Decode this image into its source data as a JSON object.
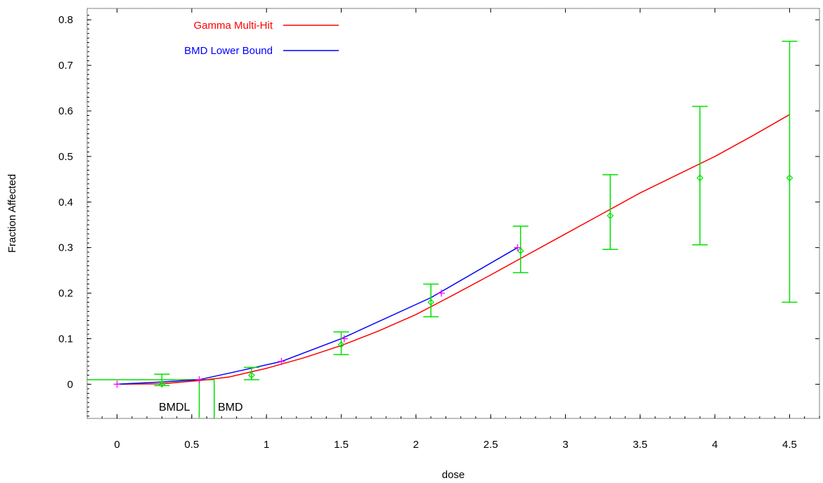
{
  "chart_data": {
    "type": "line",
    "xlabel": "dose",
    "ylabel": "Fraction Affected",
    "xlim": [
      -0.2,
      4.7
    ],
    "ylim": [
      -0.075,
      0.825
    ],
    "xticks": [
      0,
      0.5,
      1,
      1.5,
      2,
      2.5,
      3,
      3.5,
      4,
      4.5
    ],
    "xtick_labels": [
      "0",
      "0.5",
      "1",
      "1.5",
      "2",
      "2.5",
      "3",
      "3.5",
      "4",
      "4.5"
    ],
    "yticks": [
      0,
      0.1,
      0.2,
      0.3,
      0.4,
      0.5,
      0.6,
      0.7,
      0.8
    ],
    "ytick_labels": [
      "0",
      "0.1",
      "0.2",
      "0.3",
      "0.4",
      "0.5",
      "0.6",
      "0.7",
      "0.8"
    ],
    "grid": false,
    "legend_position": "top-left",
    "series": [
      {
        "name": "Gamma Multi-Hit",
        "color": "#ff0000",
        "x": [
          0,
          0.3,
          0.55,
          0.75,
          1.0,
          1.25,
          1.5,
          1.75,
          2.0,
          2.25,
          2.5,
          2.75,
          3.0,
          3.25,
          3.5,
          3.75,
          4.0,
          4.25,
          4.5
        ],
        "y": [
          0,
          0.001,
          0.008,
          0.016,
          0.035,
          0.058,
          0.085,
          0.117,
          0.153,
          0.196,
          0.24,
          0.285,
          0.33,
          0.375,
          0.42,
          0.46,
          0.5,
          0.545,
          0.592
        ]
      },
      {
        "name": "BMD Lower Bound",
        "color": "#0000ff",
        "x": [
          0,
          0.3,
          0.55,
          0.8,
          1.1,
          1.5,
          2.1,
          2.68
        ],
        "y": [
          0,
          0.005,
          0.01,
          0.028,
          0.05,
          0.1,
          0.19,
          0.3
        ]
      }
    ],
    "observations": {
      "color": "#00e000",
      "points": [
        {
          "x": 0.3,
          "y": 0.0,
          "lower": -0.003,
          "upper": 0.022
        },
        {
          "x": 0.9,
          "y": 0.02,
          "lower": 0.01,
          "upper": 0.037
        },
        {
          "x": 1.5,
          "y": 0.087,
          "lower": 0.065,
          "upper": 0.115
        },
        {
          "x": 2.1,
          "y": 0.18,
          "lower": 0.148,
          "upper": 0.22
        },
        {
          "x": 2.7,
          "y": 0.293,
          "lower": 0.245,
          "upper": 0.347
        },
        {
          "x": 3.3,
          "y": 0.37,
          "lower": 0.296,
          "upper": 0.46
        },
        {
          "x": 3.9,
          "y": 0.453,
          "lower": 0.306,
          "upper": 0.61
        },
        {
          "x": 4.5,
          "y": 0.453,
          "lower": 0.18,
          "upper": 0.753
        }
      ]
    },
    "bmd_points": {
      "color": "#ff00ff",
      "x": [
        0,
        0.55,
        1.1,
        1.52,
        2.17,
        2.68
      ],
      "y": [
        0,
        0.01,
        0.05,
        0.1,
        0.2,
        0.3
      ]
    },
    "bmr_level": 0.01,
    "bmdl": 0.55,
    "bmd": 0.65,
    "annotations": [
      "BMDL",
      "BMD"
    ]
  }
}
